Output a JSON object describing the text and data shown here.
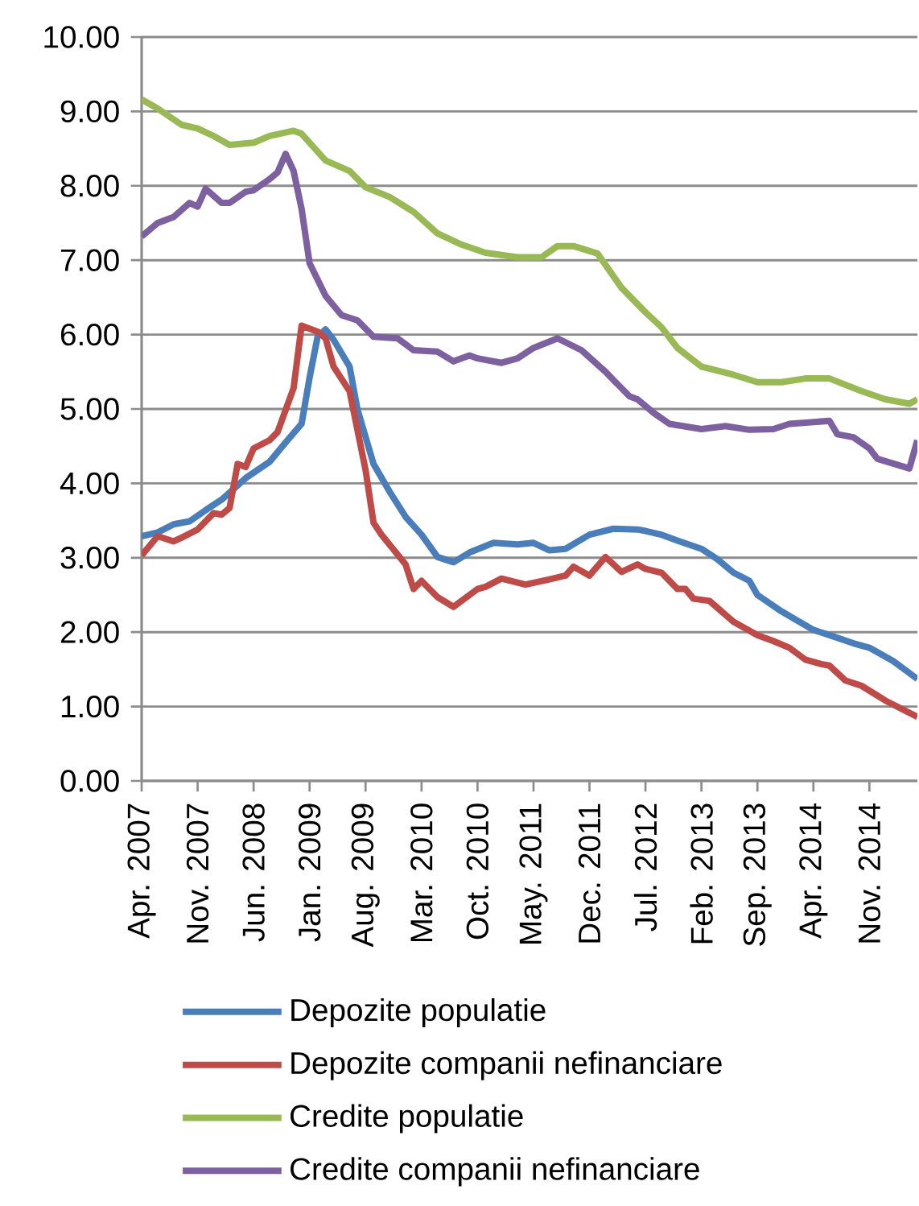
{
  "chart_data": {
    "type": "line",
    "xlim": [
      "2007-04",
      "2015-05"
    ],
    "ylim": [
      0,
      10
    ],
    "xticks": [
      {
        "value": "2007-04",
        "label": "Apr. 2007"
      },
      {
        "value": "2007-11",
        "label": "Nov. 2007"
      },
      {
        "value": "2008-06",
        "label": "Jun. 2008"
      },
      {
        "value": "2009-01",
        "label": "Jan. 2009"
      },
      {
        "value": "2009-08",
        "label": "Aug. 2009"
      },
      {
        "value": "2010-03",
        "label": "Mar. 2010"
      },
      {
        "value": "2010-10",
        "label": "Oct. 2010"
      },
      {
        "value": "2011-05",
        "label": "May. 2011"
      },
      {
        "value": "2011-12",
        "label": "Dec. 2011"
      },
      {
        "value": "2012-07",
        "label": "Jul. 2012"
      },
      {
        "value": "2013-02",
        "label": "Feb. 2013"
      },
      {
        "value": "2013-09",
        "label": "Sep. 2013"
      },
      {
        "value": "2014-04",
        "label": "Apr. 2014"
      },
      {
        "value": "2014-11",
        "label": "Nov. 2014"
      }
    ],
    "yticks": [
      {
        "value": 0,
        "label": "0.00"
      },
      {
        "value": 1,
        "label": "1.00"
      },
      {
        "value": 2,
        "label": "2.00"
      },
      {
        "value": 3,
        "label": "3.00"
      },
      {
        "value": 4,
        "label": "4.00"
      },
      {
        "value": 5,
        "label": "5.00"
      },
      {
        "value": 6,
        "label": "6.00"
      },
      {
        "value": 7,
        "label": "7.00"
      },
      {
        "value": 8,
        "label": "8.00"
      },
      {
        "value": 9,
        "label": "9.00"
      },
      {
        "value": 10,
        "label": "10.00"
      }
    ],
    "grid": "y",
    "legend": "bottom",
    "marker": "none",
    "line_style": "solid",
    "series": [
      {
        "name": "Depozite populatie",
        "color": "#4a7ebb",
        "x": [
          "2007-04",
          "2007-06",
          "2007-08",
          "2007-10",
          "2007-12",
          "2008-02",
          "2008-05",
          "2008-08",
          "2008-10",
          "2008-12",
          "2009-01",
          "2009-02",
          "2009-03",
          "2009-04",
          "2009-06",
          "2009-07",
          "2009-09",
          "2009-11",
          "2010-01",
          "2010-03",
          "2010-05",
          "2010-07",
          "2010-09",
          "2010-12",
          "2011-03",
          "2011-05",
          "2011-07",
          "2011-09",
          "2011-12",
          "2012-03",
          "2012-06",
          "2012-07",
          "2012-09",
          "2012-11",
          "2013-02",
          "2013-04",
          "2013-06",
          "2013-08",
          "2013-09",
          "2013-12",
          "2014-04",
          "2014-06",
          "2014-09",
          "2014-11",
          "2015-02",
          "2015-05"
        ],
        "values": [
          3.29,
          3.34,
          3.45,
          3.49,
          3.64,
          3.78,
          4.07,
          4.29,
          4.55,
          4.8,
          5.42,
          5.97,
          6.07,
          5.93,
          5.57,
          4.99,
          4.26,
          3.89,
          3.55,
          3.31,
          3.01,
          2.94,
          3.07,
          3.2,
          3.18,
          3.2,
          3.1,
          3.12,
          3.31,
          3.39,
          3.38,
          3.36,
          3.31,
          3.23,
          3.12,
          2.98,
          2.8,
          2.69,
          2.5,
          2.28,
          2.03,
          1.96,
          1.85,
          1.79,
          1.61,
          1.37
        ]
      },
      {
        "name": "Depozite companii nefinanciare",
        "color": "#be4b48",
        "x": [
          "2007-04",
          "2007-06",
          "2007-08",
          "2007-09",
          "2007-11",
          "2008-01",
          "2008-02",
          "2008-03",
          "2008-04",
          "2008-05",
          "2008-06",
          "2008-08",
          "2008-09",
          "2008-11",
          "2008-12",
          "2009-02",
          "2009-03",
          "2009-04",
          "2009-06",
          "2009-08",
          "2009-09",
          "2009-10",
          "2010-01",
          "2010-02",
          "2010-03",
          "2010-05",
          "2010-07",
          "2010-10",
          "2010-11",
          "2011-01",
          "2011-04",
          "2011-07",
          "2011-09",
          "2011-10",
          "2011-12",
          "2012-02",
          "2012-04",
          "2012-06",
          "2012-07",
          "2012-09",
          "2012-11",
          "2012-12",
          "2013-01",
          "2013-03",
          "2013-06",
          "2013-09",
          "2013-11",
          "2014-01",
          "2014-03",
          "2014-05",
          "2014-06",
          "2014-08",
          "2014-10",
          "2015-01",
          "2015-05"
        ],
        "values": [
          3.03,
          3.29,
          3.22,
          3.27,
          3.38,
          3.6,
          3.58,
          3.67,
          4.26,
          4.22,
          4.47,
          4.58,
          4.69,
          5.28,
          6.12,
          6.04,
          5.95,
          5.57,
          5.24,
          4.18,
          3.47,
          3.31,
          2.91,
          2.58,
          2.69,
          2.47,
          2.34,
          2.58,
          2.61,
          2.72,
          2.64,
          2.71,
          2.76,
          2.88,
          2.76,
          3.01,
          2.81,
          2.91,
          2.85,
          2.8,
          2.58,
          2.58,
          2.45,
          2.42,
          2.14,
          1.96,
          1.88,
          1.79,
          1.63,
          1.57,
          1.55,
          1.35,
          1.28,
          1.08,
          0.86
        ]
      },
      {
        "name": "Credite populatie",
        "color": "#98b954",
        "x": [
          "2007-04",
          "2007-06",
          "2007-09",
          "2007-11",
          "2008-01",
          "2008-03",
          "2008-06",
          "2008-08",
          "2008-11",
          "2008-12",
          "2009-03",
          "2009-06",
          "2009-08",
          "2009-11",
          "2010-02",
          "2010-05",
          "2010-08",
          "2010-11",
          "2011-03",
          "2011-06",
          "2011-08",
          "2011-10",
          "2012-01",
          "2012-04",
          "2012-07",
          "2012-09",
          "2012-11",
          "2013-02",
          "2013-06",
          "2013-09",
          "2013-12",
          "2014-03",
          "2014-06",
          "2014-10",
          "2015-01",
          "2015-04",
          "2015-05"
        ],
        "values": [
          9.16,
          9.04,
          8.82,
          8.77,
          8.67,
          8.55,
          8.58,
          8.67,
          8.74,
          8.7,
          8.34,
          8.2,
          7.98,
          7.85,
          7.65,
          7.36,
          7.21,
          7.1,
          7.04,
          7.04,
          7.19,
          7.19,
          7.09,
          6.63,
          6.3,
          6.1,
          5.82,
          5.57,
          5.46,
          5.36,
          5.36,
          5.41,
          5.41,
          5.24,
          5.13,
          5.07,
          5.13
        ]
      },
      {
        "name": "Credite companii nefinanciare",
        "color": "#7d60a0",
        "x": [
          "2007-04",
          "2007-06",
          "2007-08",
          "2007-10",
          "2007-11",
          "2007-12",
          "2008-02",
          "2008-03",
          "2008-05",
          "2008-06",
          "2008-08",
          "2008-09",
          "2008-10",
          "2008-11",
          "2008-12",
          "2009-01",
          "2009-03",
          "2009-05",
          "2009-07",
          "2009-09",
          "2009-12",
          "2010-02",
          "2010-05",
          "2010-07",
          "2010-09",
          "2010-10",
          "2011-01",
          "2011-03",
          "2011-05",
          "2011-08",
          "2011-11",
          "2012-02",
          "2012-05",
          "2012-06",
          "2012-08",
          "2012-10",
          "2013-02",
          "2013-05",
          "2013-08",
          "2013-11",
          "2014-01",
          "2014-06",
          "2014-07",
          "2014-09",
          "2014-11",
          "2014-12",
          "2015-04",
          "2015-05"
        ],
        "values": [
          7.32,
          7.5,
          7.58,
          7.77,
          7.72,
          7.96,
          7.77,
          7.77,
          7.92,
          7.94,
          8.09,
          8.18,
          8.43,
          8.2,
          7.69,
          6.96,
          6.52,
          6.26,
          6.19,
          5.97,
          5.95,
          5.79,
          5.77,
          5.64,
          5.72,
          5.68,
          5.62,
          5.68,
          5.82,
          5.95,
          5.79,
          5.5,
          5.17,
          5.13,
          4.95,
          4.8,
          4.73,
          4.77,
          4.72,
          4.73,
          4.8,
          4.84,
          4.66,
          4.62,
          4.47,
          4.33,
          4.2,
          4.58
        ]
      }
    ]
  }
}
